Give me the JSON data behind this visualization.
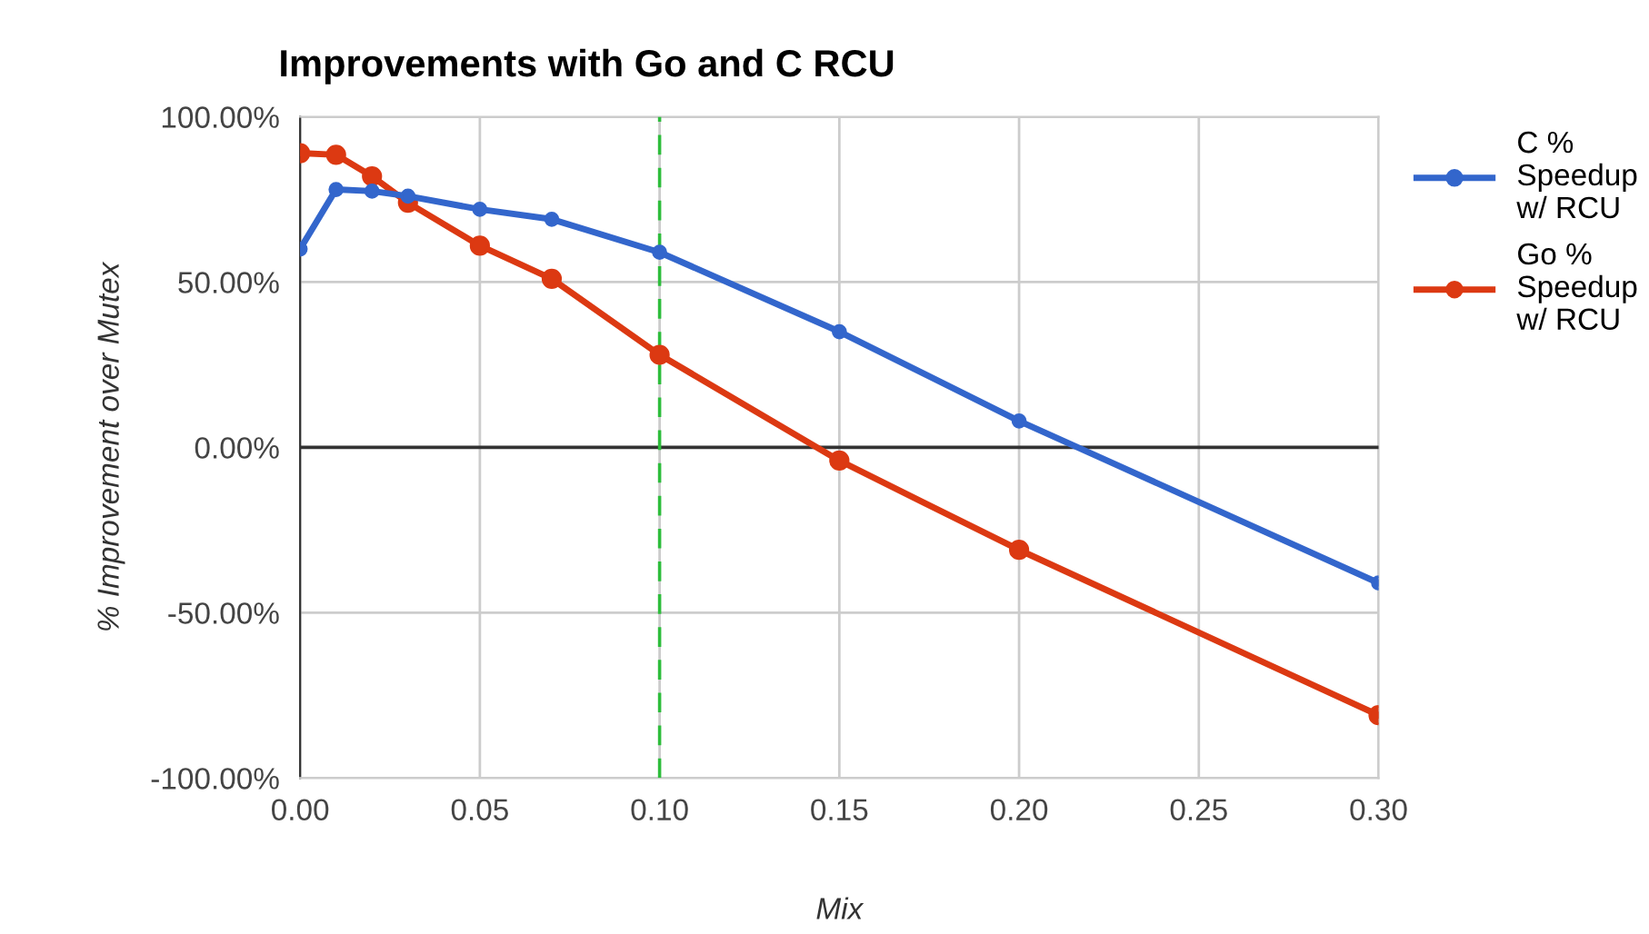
{
  "chart_data": {
    "type": "line",
    "title": "Improvements with Go and C RCU",
    "xlabel": "Mix",
    "ylabel": "% Improvement over Mutex",
    "x": [
      0,
      0.01,
      0.02,
      0.03,
      0.05,
      0.07,
      0.1,
      0.15,
      0.2,
      0.3
    ],
    "series": [
      {
        "name": "C %\nSpeedup\nw/ RCU",
        "color": "#3366cc",
        "values": [
          60,
          78,
          77.5,
          76,
          72,
          69,
          59,
          35,
          8,
          -41
        ]
      },
      {
        "name": "Go %\nSpeedup\nw/ RCU",
        "color": "#dc3912",
        "values": [
          89,
          88.5,
          82,
          74,
          61,
          51,
          28,
          -4,
          -31,
          -81
        ]
      }
    ],
    "xlim": [
      0,
      0.3
    ],
    "xticks": [
      {
        "value": 0,
        "label": "0.00"
      },
      {
        "value": 0.05,
        "label": "0.05"
      },
      {
        "value": 0.1,
        "label": "0.10"
      },
      {
        "value": 0.15,
        "label": "0.15"
      },
      {
        "value": 0.2,
        "label": "0.20"
      },
      {
        "value": 0.25,
        "label": "0.25"
      },
      {
        "value": 0.3,
        "label": "0.30"
      }
    ],
    "ylim": [
      -100,
      100
    ],
    "yticks": [
      {
        "value": -100,
        "label": "-100.00%"
      },
      {
        "value": -50,
        "label": "-50.00%"
      },
      {
        "value": 0,
        "label": "0.00%"
      },
      {
        "value": 50,
        "label": "50.00%"
      },
      {
        "value": 100,
        "label": "100.00%"
      }
    ],
    "ref_lines": [
      {
        "axis": "y",
        "value": 0,
        "color": "#333333",
        "line_style": "solid"
      },
      {
        "axis": "x",
        "value": 0.1,
        "color": "#2ebd3c",
        "line_style": "dashed"
      }
    ],
    "grid": true,
    "legend": "right",
    "marker": "circle",
    "line_style": "solid"
  }
}
